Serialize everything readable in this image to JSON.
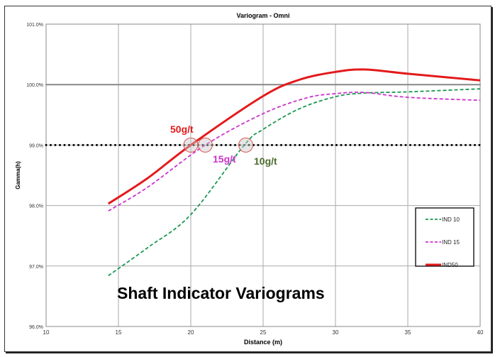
{
  "chart_data": {
    "type": "line",
    "title": "Variogram -  Omni",
    "xlabel": "Distance (m)",
    "ylabel": "Gamma(h)",
    "xlim": [
      10,
      40
    ],
    "ylim": [
      96.0,
      101.0
    ],
    "xticks": [
      "10",
      "15",
      "20",
      "25",
      "30",
      "35",
      "40"
    ],
    "yticks": [
      "96.0%",
      "97.0%",
      "98.0%",
      "99.0%",
      "100.0%",
      "101.0%"
    ],
    "grid": true,
    "legend_position": "bottom-right",
    "series": [
      {
        "name": "IND 10",
        "color": "#1a9850",
        "style": "dashed",
        "x": [
          14.3,
          17,
          20,
          23.7,
          25,
          27.5,
          30,
          32,
          35,
          40
        ],
        "y": [
          96.84,
          97.3,
          97.85,
          99.0,
          99.26,
          99.6,
          99.8,
          99.86,
          99.88,
          99.93
        ]
      },
      {
        "name": "IND 15",
        "color": "#cc33cc",
        "style": "dashed",
        "x": [
          14.3,
          17,
          21,
          25,
          28,
          30,
          32,
          35,
          40
        ],
        "y": [
          97.91,
          98.3,
          99.0,
          99.52,
          99.78,
          99.85,
          99.87,
          99.79,
          99.74
        ]
      },
      {
        "name": "IND50",
        "color": "#e31a1c",
        "style": "solid",
        "x": [
          14.3,
          17,
          20,
          25,
          27.5,
          30,
          32,
          35,
          40
        ],
        "y": [
          98.03,
          98.45,
          99.0,
          99.81,
          100.08,
          100.21,
          100.25,
          100.18,
          100.07
        ]
      }
    ],
    "reference_lines": [
      {
        "y": 100.0,
        "color": "#888888",
        "style": "solid"
      },
      {
        "y": 99.0,
        "color": "#000000",
        "style": "dotted"
      }
    ],
    "annotations": [
      {
        "text": "50g/t",
        "x": 20.0,
        "y": 99.0,
        "color": "#e31a1c"
      },
      {
        "text": "15g/t",
        "x": 21.0,
        "y": 99.0,
        "color": "#cc33cc"
      },
      {
        "text": "10g/t",
        "x": 23.8,
        "y": 99.0,
        "color": "#4a6b2a"
      }
    ],
    "overlay_title": "Shaft Indicator Variograms"
  }
}
